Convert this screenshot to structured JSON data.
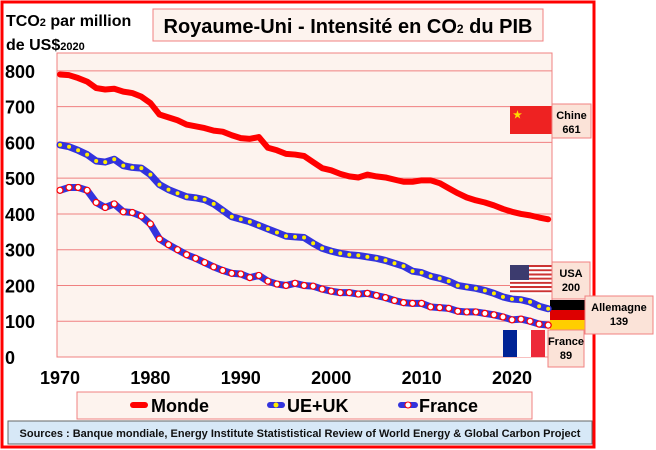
{
  "chart_data": {
    "type": "line",
    "title": "Royaume-Uni - Intensité en CO",
    "title_sub": "2",
    "title_end": " du PIB",
    "ylabel_line1": "TCO",
    "ylabel_sub": "2",
    "ylabel_line1_end": " par million",
    "ylabel_line2": "de US$",
    "ylabel_line2_sub": "2020",
    "xlim": [
      1970,
      2024.5
    ],
    "ylim": [
      0,
      850
    ],
    "yticks": [
      0,
      100,
      200,
      300,
      400,
      500,
      600,
      700,
      800
    ],
    "xticks": [
      1970,
      1980,
      1990,
      2000,
      2010,
      2020
    ],
    "grid": true,
    "legend_position": "bottom",
    "series": [
      {
        "name": "Monde",
        "color": "#ff0000",
        "style": "solid",
        "x": [
          1970,
          1971,
          1972,
          1973,
          1974,
          1975,
          1976,
          1977,
          1978,
          1979,
          1980,
          1981,
          1982,
          1983,
          1984,
          1985,
          1986,
          1987,
          1988,
          1989,
          1990,
          1991,
          1992,
          1993,
          1994,
          1995,
          1996,
          1997,
          1998,
          1999,
          2000,
          2001,
          2002,
          2003,
          2004,
          2005,
          2006,
          2007,
          2008,
          2009,
          2010,
          2011,
          2012,
          2013,
          2014,
          2015,
          2016,
          2017,
          2018,
          2019,
          2020,
          2021,
          2022,
          2023,
          2024
        ],
        "values": [
          790,
          788,
          780,
          770,
          752,
          748,
          750,
          742,
          738,
          728,
          710,
          678,
          670,
          662,
          650,
          645,
          640,
          633,
          630,
          620,
          612,
          610,
          615,
          585,
          578,
          568,
          566,
          562,
          545,
          528,
          522,
          512,
          505,
          502,
          510,
          505,
          502,
          496,
          490,
          490,
          494,
          494,
          486,
          472,
          458,
          446,
          438,
          432,
          424,
          414,
          406,
          400,
          396,
          390,
          385
        ]
      },
      {
        "name": "UE+UK",
        "color": "#3333dd",
        "marker_color": "#ffee00",
        "x": [
          1970,
          1971,
          1972,
          1973,
          1974,
          1975,
          1976,
          1977,
          1978,
          1979,
          1980,
          1981,
          1982,
          1983,
          1984,
          1985,
          1986,
          1987,
          1988,
          1989,
          1990,
          1991,
          1992,
          1993,
          1994,
          1995,
          1996,
          1997,
          1998,
          1999,
          2000,
          2001,
          2002,
          2003,
          2004,
          2005,
          2006,
          2007,
          2008,
          2009,
          2010,
          2011,
          2012,
          2013,
          2014,
          2015,
          2016,
          2017,
          2018,
          2019,
          2020,
          2021,
          2022,
          2023,
          2024
        ],
        "values": [
          593,
          588,
          578,
          566,
          548,
          545,
          553,
          535,
          530,
          528,
          510,
          482,
          468,
          458,
          448,
          445,
          440,
          428,
          410,
          392,
          385,
          378,
          368,
          358,
          348,
          338,
          336,
          334,
          318,
          304,
          296,
          290,
          286,
          284,
          280,
          276,
          270,
          262,
          254,
          240,
          236,
          226,
          220,
          212,
          200,
          196,
          192,
          186,
          178,
          168,
          162,
          160,
          154,
          142,
          135
        ]
      },
      {
        "name": "France",
        "color": "#3333dd",
        "marker_color": "#ffffff",
        "marker_edge": "#ff0000",
        "x": [
          1970,
          1971,
          1972,
          1973,
          1974,
          1975,
          1976,
          1977,
          1978,
          1979,
          1980,
          1981,
          1982,
          1983,
          1984,
          1985,
          1986,
          1987,
          1988,
          1989,
          1990,
          1991,
          1992,
          1993,
          1994,
          1995,
          1996,
          1997,
          1998,
          1999,
          2000,
          2001,
          2002,
          2003,
          2004,
          2005,
          2006,
          2007,
          2008,
          2009,
          2010,
          2011,
          2012,
          2013,
          2014,
          2015,
          2016,
          2017,
          2018,
          2019,
          2020,
          2021,
          2022,
          2023,
          2024
        ],
        "values": [
          466,
          474,
          474,
          466,
          432,
          418,
          428,
          406,
          404,
          394,
          372,
          330,
          314,
          300,
          286,
          276,
          264,
          252,
          242,
          234,
          232,
          222,
          228,
          212,
          204,
          200,
          206,
          200,
          198,
          190,
          184,
          180,
          180,
          176,
          178,
          172,
          166,
          158,
          152,
          150,
          150,
          140,
          138,
          136,
          128,
          126,
          126,
          122,
          118,
          112,
          104,
          106,
          100,
          92,
          89
        ]
      }
    ],
    "annotations": [
      {
        "country": "Chine",
        "value": "661",
        "flag": "china"
      },
      {
        "country": "USA",
        "value": "200",
        "flag": "usa"
      },
      {
        "country": "Allemagne",
        "value": "139",
        "flag": "germany"
      },
      {
        "country": "France",
        "value": "89",
        "flag": "france"
      }
    ],
    "annotation_values": [
      661,
      200,
      139,
      89
    ],
    "source": "Sources : Banque mondiale, Energy Institute Statististical Review of World Energy & Global Carbon Project"
  }
}
